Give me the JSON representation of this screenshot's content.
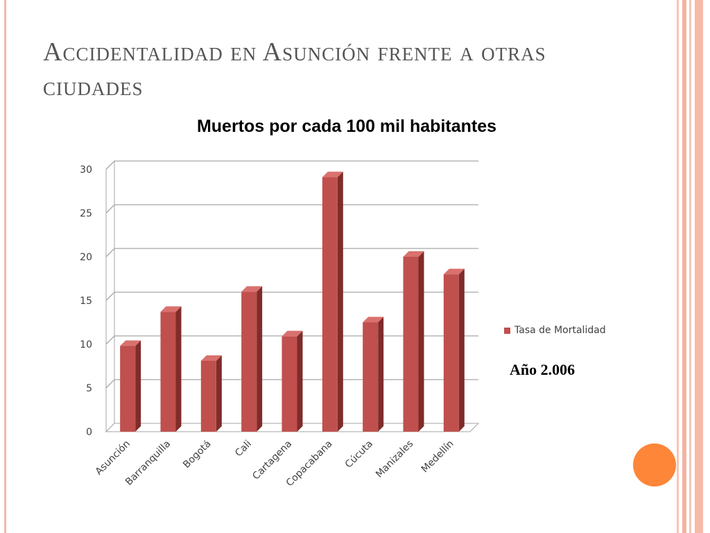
{
  "slide": {
    "title": "Accidentalidad en Asunción frente a otras ciudades",
    "year_note": "Año 2.006"
  },
  "theme": {
    "bar_color": "#c0504d",
    "bar_side_color": "#7f2c2a",
    "bar_top_color": "#d9716e",
    "accent_orange": "#fd8639",
    "border_color": "#f4b9a8"
  },
  "chart_data": {
    "type": "bar",
    "title": "Muertos por cada 100 mil habitantes",
    "categories": [
      "Asunción",
      "Barranquilla",
      "Bogotá",
      "Cali",
      "Cartagena",
      "Copacabana",
      "Cúcuta",
      "Manizales",
      "Medellín"
    ],
    "series": [
      {
        "name": "Tasa de Mortalidad",
        "values": [
          9.8,
          13.7,
          8.1,
          16.0,
          10.9,
          29.1,
          12.5,
          20.0,
          18.0
        ]
      }
    ],
    "ylim": [
      0,
      30
    ],
    "yticks": [
      "0",
      "5",
      "10",
      "15",
      "20",
      "25",
      "30"
    ],
    "grid": true,
    "legend_position": "right"
  }
}
